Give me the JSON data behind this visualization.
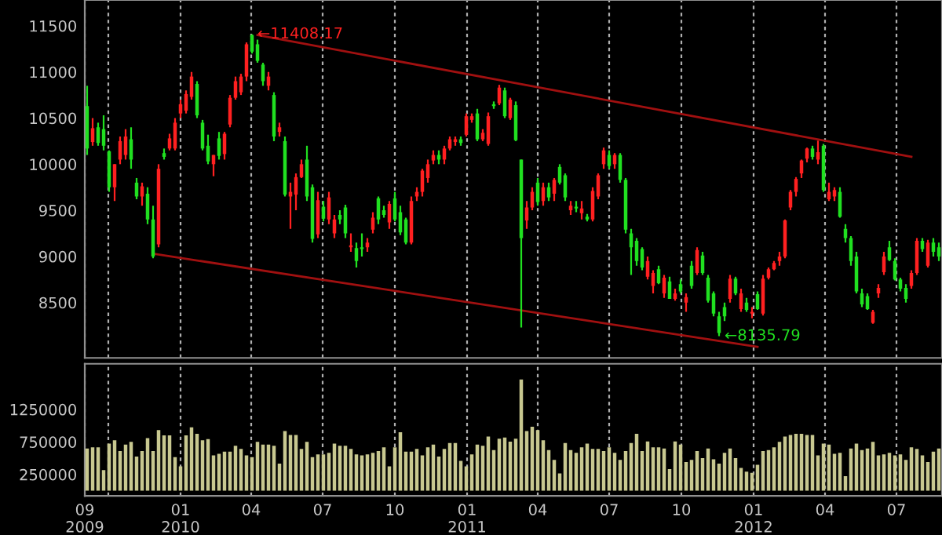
{
  "chart_data": [
    {
      "type": "candlestick",
      "tick_labels": "y",
      "grid": "x",
      "colors": [
        "#20e020",
        "#ff2020",
        "#20e020",
        "#20e020",
        "#20e020",
        "#ff2020",
        "#ff2020",
        "#ff2020",
        "#20e020",
        "#20e020",
        "#ff2020",
        "#20e020",
        "#20e020",
        "#ff2020",
        "#20e020",
        "#ff2020",
        "#ff2020",
        "#ff2020",
        "#ff2020",
        "#ff2020",
        "#20e020",
        "#20e020",
        "#20e020",
        "#ff2020",
        "#20e020",
        "#ff2020",
        "#ff2020",
        "#ff2020",
        "#ff2020",
        "#ff2020",
        "#20e020",
        "#20e020",
        "#20e020",
        "#ff2020",
        "#20e020",
        "#ff2020",
        "#20e020",
        "#ff2020",
        "#ff2020",
        "#ff2020",
        "#20e020",
        "#20e020",
        "#ff2020",
        "#20e020",
        "#ff2020",
        "#ff2020",
        "#20e020",
        "#20e020",
        "#ff2020",
        "#20e020",
        "#20e020",
        "#ff2020",
        "#ff2020",
        "#20e020",
        "#20e020",
        "#ff2020",
        "#20e020",
        "#20e020",
        "#20e020",
        "#ff2020",
        "#ff2020",
        "#ff2020",
        "#ff2020",
        "#ff2020",
        "#20e020",
        "#ff2020",
        "#ff2020",
        "#ff2020",
        "#20e020",
        "#ff2020",
        "#ff2020",
        "#20e020",
        "#ff2020",
        "#ff2020",
        "#20e020",
        "#ff2020",
        "#20e020",
        "#ff2020",
        "#20e020",
        "#20e020",
        "#ff2020",
        "#ff2020",
        "#20e020",
        "#ff2020",
        "#20e020",
        "#ff2020",
        "#20e020",
        "#20e020",
        "#ff2020",
        "#20e020",
        "#ff2020",
        "#20e020",
        "#ff2020",
        "#ff2020",
        "#ff2020",
        "#20e020",
        "#ff2020",
        "#20e020",
        "#20e020",
        "#20e020",
        "#20e020",
        "#20e020",
        "#ff2020",
        "#ff2020",
        "#20e020",
        "#ff2020",
        "#20e020",
        "#ff2020",
        "#20e020",
        "#ff2020",
        "#20e020",
        "#ff2020",
        "#20e020",
        "#20e020",
        "#20e020",
        "#20e020",
        "#20e020",
        "#ff2020",
        "#20e020",
        "#ff2020",
        "#20e020",
        "#ff2020",
        "#20e020",
        "#ff2020",
        "#ff2020",
        "#ff2020",
        "#ff2020",
        "#ff2020",
        "#ff2020",
        "#ff2020",
        "#ff2020",
        "#ff2020",
        "#20e020",
        "#ff2020",
        "#20e020",
        "#ff2020",
        "#ff2020",
        "#20e020",
        "#20e020",
        "#20e020",
        "#20e020",
        "#20e020",
        "#20e020",
        "#ff2020",
        "#ff2020",
        "#ff2020",
        "#20e020",
        "#20e020",
        "#20e020",
        "#20e020",
        "#ff2020",
        "#ff2020",
        "#20e020",
        "#ff2020",
        "#20e020",
        "#20e020"
      ],
      "xlim": [
        "2009-09-01",
        "2012-08-28"
      ],
      "xticks": [
        {
          "value": "2009-09-01",
          "label": null
        },
        {
          "value": "2009-10-01",
          "label": null
        },
        {
          "value": "2010-01-01",
          "label": null
        },
        {
          "value": "2010-04-01",
          "label": null
        },
        {
          "value": "2010-07-01",
          "label": null
        },
        {
          "value": "2010-10-01",
          "label": null
        },
        {
          "value": "2011-01-01",
          "label": null
        },
        {
          "value": "2011-04-01",
          "label": null
        },
        {
          "value": "2011-07-01",
          "label": null
        },
        {
          "value": "2011-10-01",
          "label": null
        },
        {
          "value": "2012-01-01",
          "label": null
        },
        {
          "value": "2012-04-01",
          "label": null
        },
        {
          "value": "2012-07-01",
          "label": null
        }
      ],
      "ylim": [
        7900,
        11780
      ],
      "yticks": [
        8500,
        9000,
        9500,
        10000,
        10500,
        11000,
        11500
      ],
      "annotations": [
        {
          "text": "←11408.17",
          "x": "2010-04-09",
          "y": 11408.17
        },
        {
          "text": "←8135.79",
          "x": "2011-11-25",
          "y": 8135.79
        }
      ],
      "x": [
        "2009-09-04",
        "2009-09-11",
        "2009-09-18",
        "2009-09-25",
        "2009-10-02",
        "2009-10-09",
        "2009-10-16",
        "2009-10-23",
        "2009-10-30",
        "2009-11-06",
        "2009-11-13",
        "2009-11-20",
        "2009-11-27",
        "2009-12-04",
        "2009-12-11",
        "2009-12-18",
        "2009-12-25",
        "2010-01-01",
        "2010-01-08",
        "2010-01-15",
        "2010-01-22",
        "2010-01-29",
        "2010-02-05",
        "2010-02-12",
        "2010-02-19",
        "2010-02-26",
        "2010-03-05",
        "2010-03-12",
        "2010-03-19",
        "2010-03-26",
        "2010-04-02",
        "2010-04-09",
        "2010-04-16",
        "2010-04-23",
        "2010-04-30",
        "2010-05-07",
        "2010-05-14",
        "2010-05-21",
        "2010-05-28",
        "2010-06-04",
        "2010-06-11",
        "2010-06-18",
        "2010-06-25",
        "2010-07-02",
        "2010-07-09",
        "2010-07-16",
        "2010-07-23",
        "2010-07-30",
        "2010-08-06",
        "2010-08-13",
        "2010-08-20",
        "2010-08-27",
        "2010-09-03",
        "2010-09-10",
        "2010-09-17",
        "2010-09-24",
        "2010-10-01",
        "2010-10-08",
        "2010-10-15",
        "2010-10-22",
        "2010-10-29",
        "2010-11-05",
        "2010-11-12",
        "2010-11-19",
        "2010-11-26",
        "2010-12-03",
        "2010-12-10",
        "2010-12-17",
        "2010-12-24",
        "2010-12-31",
        "2011-01-07",
        "2011-01-14",
        "2011-01-21",
        "2011-01-28",
        "2011-02-04",
        "2011-02-11",
        "2011-02-18",
        "2011-02-25",
        "2011-03-04",
        "2011-03-11",
        "2011-03-18",
        "2011-03-25",
        "2011-04-01",
        "2011-04-08",
        "2011-04-15",
        "2011-04-22",
        "2011-04-29",
        "2011-05-06",
        "2011-05-13",
        "2011-05-20",
        "2011-05-27",
        "2011-06-03",
        "2011-06-10",
        "2011-06-17",
        "2011-06-24",
        "2011-07-01",
        "2011-07-08",
        "2011-07-15",
        "2011-07-22",
        "2011-07-29",
        "2011-08-05",
        "2011-08-12",
        "2011-08-19",
        "2011-08-26",
        "2011-09-02",
        "2011-09-09",
        "2011-09-16",
        "2011-09-23",
        "2011-09-30",
        "2011-10-07",
        "2011-10-14",
        "2011-10-21",
        "2011-10-28",
        "2011-11-04",
        "2011-11-11",
        "2011-11-18",
        "2011-11-25",
        "2011-12-02",
        "2011-12-09",
        "2011-12-16",
        "2011-12-23",
        "2011-12-30",
        "2012-01-06",
        "2012-01-13",
        "2012-01-20",
        "2012-01-27",
        "2012-02-03",
        "2012-02-10",
        "2012-02-17",
        "2012-02-24",
        "2012-03-02",
        "2012-03-09",
        "2012-03-16",
        "2012-03-23",
        "2012-03-30",
        "2012-04-06",
        "2012-04-13",
        "2012-04-20",
        "2012-04-27",
        "2012-05-04",
        "2012-05-11",
        "2012-05-18",
        "2012-05-25",
        "2012-06-01",
        "2012-06-08",
        "2012-06-15",
        "2012-06-22",
        "2012-06-29",
        "2012-07-06",
        "2012-07-13",
        "2012-07-20",
        "2012-07-27",
        "2012-08-03",
        "2012-08-10",
        "2012-08-17",
        "2012-08-24"
      ],
      "ohlc": [
        [
          10630,
          10850,
          10100,
          10170
        ],
        [
          10240,
          10500,
          10200,
          10390
        ],
        [
          10400,
          10450,
          10200,
          10230
        ],
        [
          10380,
          10530,
          10150,
          10200
        ],
        [
          10140,
          10150,
          9700,
          9750
        ],
        [
          9750,
          10000,
          9600,
          10000
        ],
        [
          10050,
          10300,
          10000,
          10250
        ],
        [
          10100,
          10380,
          10050,
          10300
        ],
        [
          10270,
          10400,
          9950,
          10050
        ],
        [
          9800,
          9850,
          9620,
          9650
        ],
        [
          9650,
          9800,
          9550,
          9760
        ],
        [
          9680,
          9750,
          9350,
          9400
        ],
        [
          9400,
          9550,
          8980,
          9000
        ],
        [
          9130,
          10000,
          9100,
          9950
        ],
        [
          10120,
          10170,
          10050,
          10080
        ],
        [
          10170,
          10330,
          10150,
          10280
        ],
        [
          10170,
          10500,
          10150,
          10450
        ],
        [
          10550,
          10700,
          10500,
          10650
        ],
        [
          10580,
          10800,
          10550,
          10760
        ],
        [
          10730,
          11000,
          10700,
          10950
        ],
        [
          10870,
          10900,
          10500,
          10530
        ],
        [
          10450,
          10480,
          10150,
          10170
        ],
        [
          10200,
          10320,
          10000,
          10030
        ],
        [
          10000,
          10100,
          9870,
          10100
        ],
        [
          10280,
          10350,
          10050,
          10090
        ],
        [
          10110,
          10350,
          10050,
          10330
        ],
        [
          10430,
          10750,
          10400,
          10720
        ],
        [
          10720,
          10950,
          10700,
          10900
        ],
        [
          10780,
          10980,
          10750,
          10950
        ],
        [
          10950,
          11320,
          10900,
          11300
        ],
        [
          11400,
          11408,
          11200,
          11220
        ],
        [
          11300,
          11350,
          11100,
          11120
        ],
        [
          11080,
          11100,
          10850,
          10900
        ],
        [
          10850,
          11000,
          10800,
          10950
        ],
        [
          10750,
          10780,
          10250,
          10300
        ],
        [
          10350,
          10450,
          10300,
          10400
        ],
        [
          10250,
          10300,
          9650,
          9670
        ],
        [
          9650,
          9800,
          9300,
          9700
        ],
        [
          9670,
          9900,
          9500,
          9860
        ],
        [
          9860,
          10050,
          9850,
          10000
        ],
        [
          10050,
          10200,
          9600,
          9650
        ],
        [
          9750,
          9780,
          9150,
          9190
        ],
        [
          9240,
          9700,
          9200,
          9610
        ],
        [
          9540,
          9600,
          9380,
          9410
        ],
        [
          9400,
          9700,
          9350,
          9640
        ],
        [
          9250,
          9450,
          9200,
          9400
        ],
        [
          9450,
          9500,
          9350,
          9400
        ],
        [
          9530,
          9560,
          9200,
          9250
        ],
        [
          9100,
          9250,
          9050,
          9120
        ],
        [
          9090,
          9150,
          8880,
          8950
        ],
        [
          9100,
          9250,
          9000,
          9080
        ],
        [
          9100,
          9200,
          9050,
          9150
        ],
        [
          9290,
          9480,
          9250,
          9420
        ],
        [
          9630,
          9650,
          9350,
          9400
        ],
        [
          9500,
          9550,
          9420,
          9450
        ],
        [
          9370,
          9600,
          9300,
          9570
        ],
        [
          9630,
          9700,
          9380,
          9400
        ],
        [
          9480,
          9550,
          9230,
          9260
        ],
        [
          9400,
          9420,
          9130,
          9150
        ],
        [
          9150,
          9650,
          9130,
          9600
        ],
        [
          9650,
          9750,
          9600,
          9700
        ],
        [
          9700,
          9950,
          9650,
          9930
        ],
        [
          9850,
          10050,
          9800,
          10000
        ],
        [
          10040,
          10150,
          10000,
          10100
        ],
        [
          10100,
          10150,
          10000,
          10050
        ],
        [
          10050,
          10200,
          10000,
          10170
        ],
        [
          10170,
          10300,
          10150,
          10270
        ],
        [
          10240,
          10300,
          10200,
          10270
        ],
        [
          10270,
          10300,
          10200,
          10230
        ],
        [
          10320,
          10550,
          10300,
          10520
        ],
        [
          10480,
          10550,
          10450,
          10520
        ],
        [
          10550,
          10600,
          10250,
          10270
        ],
        [
          10270,
          10380,
          10250,
          10340
        ],
        [
          10220,
          10560,
          10200,
          10520
        ],
        [
          10650,
          10680,
          10600,
          10630
        ],
        [
          10660,
          10860,
          10640,
          10830
        ],
        [
          10800,
          10830,
          10500,
          10520
        ],
        [
          10500,
          10720,
          10480,
          10700
        ],
        [
          10640,
          10680,
          10250,
          10260
        ],
        [
          10050,
          10050,
          8230,
          9200
        ],
        [
          9390,
          9600,
          9300,
          9530
        ],
        [
          9530,
          9750,
          9500,
          9700
        ],
        [
          9800,
          9850,
          9550,
          9590
        ],
        [
          9600,
          9800,
          9550,
          9750
        ],
        [
          9750,
          9800,
          9600,
          9640
        ],
        [
          9680,
          9850,
          9600,
          9830
        ],
        [
          9970,
          10000,
          9780,
          9800
        ],
        [
          9880,
          9900,
          9600,
          9640
        ],
        [
          9500,
          9600,
          9450,
          9550
        ],
        [
          9540,
          9600,
          9480,
          9520
        ],
        [
          9470,
          9600,
          9400,
          9520
        ],
        [
          9430,
          9460,
          9380,
          9400
        ],
        [
          9400,
          9750,
          9380,
          9710
        ],
        [
          9650,
          9900,
          9620,
          9880
        ],
        [
          10000,
          10180,
          9950,
          10150
        ],
        [
          10100,
          10150,
          9950,
          9980
        ],
        [
          10000,
          10120,
          9950,
          10100
        ],
        [
          10100,
          10120,
          9800,
          9830
        ],
        [
          9830,
          9850,
          9250,
          9290
        ],
        [
          9250,
          9300,
          8800,
          9100
        ],
        [
          9170,
          9200,
          8900,
          8950
        ],
        [
          9080,
          9100,
          8850,
          8880
        ],
        [
          8780,
          9000,
          8750,
          8950
        ],
        [
          8680,
          8850,
          8600,
          8820
        ],
        [
          8860,
          8900,
          8700,
          8710
        ],
        [
          8600,
          8800,
          8550,
          8770
        ],
        [
          8730,
          8780,
          8540,
          8540
        ],
        [
          8540,
          8650,
          8520,
          8600
        ],
        [
          8700,
          8750,
          8600,
          8620
        ],
        [
          8500,
          8600,
          8400,
          8560
        ],
        [
          8900,
          8950,
          8650,
          8680
        ],
        [
          8820,
          9100,
          8800,
          9070
        ],
        [
          9010,
          9050,
          8800,
          8820
        ],
        [
          8770,
          8800,
          8500,
          8520
        ],
        [
          8600,
          8620,
          8350,
          8380
        ],
        [
          8350,
          8400,
          8136,
          8170
        ],
        [
          8450,
          8500,
          8300,
          8350
        ],
        [
          8540,
          8800,
          8500,
          8760
        ],
        [
          8760,
          8780,
          8580,
          8600
        ],
        [
          8430,
          8650,
          8400,
          8600
        ],
        [
          8500,
          8550,
          8400,
          8420
        ],
        [
          8380,
          8450,
          8330,
          8400
        ],
        [
          8590,
          8620,
          8420,
          8430
        ],
        [
          8380,
          8800,
          8360,
          8760
        ],
        [
          8770,
          8880,
          8750,
          8860
        ],
        [
          8860,
          8950,
          8850,
          8930
        ],
        [
          8950,
          9050,
          8900,
          9000
        ],
        [
          9000,
          9400,
          8980,
          9390
        ],
        [
          9530,
          9720,
          9500,
          9700
        ],
        [
          9700,
          9860,
          9650,
          9840
        ],
        [
          9900,
          10050,
          9850,
          10040
        ],
        [
          10060,
          10180,
          10020,
          10170
        ],
        [
          10170,
          10200,
          10050,
          10080
        ],
        [
          10050,
          10255,
          10000,
          10130
        ],
        [
          10200,
          10220,
          9700,
          9720
        ],
        [
          9620,
          9800,
          9600,
          9700
        ],
        [
          9650,
          9750,
          9600,
          9720
        ],
        [
          9700,
          9750,
          9420,
          9430
        ],
        [
          9300,
          9350,
          9150,
          9200
        ],
        [
          9200,
          9220,
          8900,
          8950
        ],
        [
          9000,
          9050,
          8600,
          8620
        ],
        [
          8600,
          8650,
          8450,
          8480
        ],
        [
          8570,
          8600,
          8420,
          8430
        ],
        [
          8280,
          8420,
          8270,
          8400
        ],
        [
          8600,
          8700,
          8550,
          8660
        ],
        [
          8830,
          9050,
          8800,
          9000
        ],
        [
          9100,
          9170,
          8950,
          8960
        ],
        [
          8950,
          8980,
          8740,
          8750
        ],
        [
          8750,
          8770,
          8620,
          8650
        ],
        [
          8660,
          8700,
          8500,
          8540
        ],
        [
          8680,
          8850,
          8650,
          8820
        ],
        [
          8820,
          9200,
          8800,
          9170
        ],
        [
          9170,
          9200,
          9050,
          9080
        ],
        [
          8900,
          9180,
          8880,
          9150
        ],
        [
          9150,
          9200,
          9000,
          9050
        ],
        [
          9100,
          9150,
          8950,
          9000
        ]
      ],
      "series": [
        {
          "type": "line",
          "x": [
            "2010-04-09",
            "2012-07-20"
          ],
          "values": [
            11400,
            10080
          ],
          "color": "#a01010"
        },
        {
          "type": "line",
          "x": [
            "2009-11-27",
            "2012-01-06"
          ],
          "values": [
            9030,
            8020
          ],
          "color": "#a01010"
        }
      ]
    },
    {
      "type": "bar",
      "color": "#c8c890",
      "grid": "x",
      "xlim": [
        "2009-09-01",
        "2012-08-28"
      ],
      "xticks": [
        {
          "value": "2009-09-01",
          "label": "09\n2009"
        },
        {
          "value": "2009-10-01",
          "label": null
        },
        {
          "value": "2010-01-01",
          "label": "01\n2010"
        },
        {
          "value": "2010-04-01",
          "label": "04"
        },
        {
          "value": "2010-07-01",
          "label": "07"
        },
        {
          "value": "2010-10-01",
          "label": "10"
        },
        {
          "value": "2011-01-01",
          "label": "01\n2011"
        },
        {
          "value": "2011-04-01",
          "label": "04"
        },
        {
          "value": "2011-07-01",
          "label": "07"
        },
        {
          "value": "2011-10-01",
          "label": "10"
        },
        {
          "value": "2012-01-01",
          "label": "01\n2012"
        },
        {
          "value": "2012-04-01",
          "label": "04"
        },
        {
          "value": "2012-07-01",
          "label": "07"
        }
      ],
      "ylim": [
        -80000,
        1950000
      ],
      "yticks": [
        250000,
        750000,
        1250000
      ],
      "values": [
        650000,
        667000,
        667000,
        317000,
        725000,
        775000,
        608000,
        708000,
        750000,
        525000,
        608000,
        808000,
        608000,
        933000,
        850000,
        850000,
        517000,
        375000,
        850000,
        975000,
        875000,
        775000,
        792000,
        542000,
        567000,
        600000,
        600000,
        692000,
        642000,
        542000,
        517000,
        750000,
        708000,
        708000,
        692000,
        417000,
        917000,
        858000,
        858000,
        642000,
        750000,
        517000,
        558000,
        558000,
        583000,
        725000,
        692000,
        692000,
        642000,
        558000,
        542000,
        558000,
        583000,
        608000,
        667000,
        375000,
        667000,
        900000,
        600000,
        600000,
        642000,
        542000,
        667000,
        708000,
        525000,
        642000,
        733000,
        733000,
        458000,
        375000,
        558000,
        708000,
        692000,
        833000,
        625000,
        800000,
        817000,
        755000,
        800000,
        1710000,
        917000,
        983000,
        933000,
        775000,
        625000,
        475000,
        267000,
        733000,
        625000,
        583000,
        667000,
        725000,
        642000,
        642000,
        608000,
        667000,
        583000,
        475000,
        608000,
        733000,
        875000,
        608000,
        758000,
        667000,
        667000,
        650000,
        333000,
        758000,
        708000,
        442000,
        475000,
        608000,
        500000,
        650000,
        483000,
        417000,
        583000,
        650000,
        500000,
        350000,
        292000,
        275000,
        400000,
        608000,
        625000,
        667000,
        750000,
        833000,
        858000,
        875000,
        875000,
        858000,
        858000,
        542000,
        725000,
        708000,
        567000,
        583000,
        225000,
        650000,
        725000,
        625000,
        650000,
        750000,
        542000,
        558000,
        583000,
        542000,
        558000,
        475000,
        667000,
        642000,
        542000,
        442000,
        600000,
        650000
      ],
      "x": [
        "2009-09-04",
        "2009-09-11",
        "2009-09-18",
        "2009-09-25",
        "2009-10-02",
        "2009-10-09",
        "2009-10-16",
        "2009-10-23",
        "2009-10-30",
        "2009-11-06",
        "2009-11-13",
        "2009-11-20",
        "2009-11-27",
        "2009-12-04",
        "2009-12-11",
        "2009-12-18",
        "2009-12-25",
        "2010-01-01",
        "2010-01-08",
        "2010-01-15",
        "2010-01-22",
        "2010-01-29",
        "2010-02-05",
        "2010-02-12",
        "2010-02-19",
        "2010-02-26",
        "2010-03-05",
        "2010-03-12",
        "2010-03-19",
        "2010-03-26",
        "2010-04-02",
        "2010-04-09",
        "2010-04-16",
        "2010-04-23",
        "2010-04-30",
        "2010-05-07",
        "2010-05-14",
        "2010-05-21",
        "2010-05-28",
        "2010-06-04",
        "2010-06-11",
        "2010-06-18",
        "2010-06-25",
        "2010-07-02",
        "2010-07-09",
        "2010-07-16",
        "2010-07-23",
        "2010-07-30",
        "2010-08-06",
        "2010-08-13",
        "2010-08-20",
        "2010-08-27",
        "2010-09-03",
        "2010-09-10",
        "2010-09-17",
        "2010-09-24",
        "2010-10-01",
        "2010-10-08",
        "2010-10-15",
        "2010-10-22",
        "2010-10-29",
        "2010-11-05",
        "2010-11-12",
        "2010-11-19",
        "2010-11-26",
        "2010-12-03",
        "2010-12-10",
        "2010-12-17",
        "2010-12-24",
        "2010-12-31",
        "2011-01-07",
        "2011-01-14",
        "2011-01-21",
        "2011-01-28",
        "2011-02-04",
        "2011-02-11",
        "2011-02-18",
        "2011-02-25",
        "2011-03-04",
        "2011-03-11",
        "2011-03-18",
        "2011-03-25",
        "2011-04-01",
        "2011-04-08",
        "2011-04-15",
        "2011-04-22",
        "2011-04-29",
        "2011-05-06",
        "2011-05-13",
        "2011-05-20",
        "2011-05-27",
        "2011-06-03",
        "2011-06-10",
        "2011-06-17",
        "2011-06-24",
        "2011-07-01",
        "2011-07-08",
        "2011-07-15",
        "2011-07-22",
        "2011-07-29",
        "2011-08-05",
        "2011-08-12",
        "2011-08-19",
        "2011-08-26",
        "2011-09-02",
        "2011-09-09",
        "2011-09-16",
        "2011-09-23",
        "2011-09-30",
        "2011-10-07",
        "2011-10-14",
        "2011-10-21",
        "2011-10-28",
        "2011-11-04",
        "2011-11-11",
        "2011-11-18",
        "2011-11-25",
        "2011-12-02",
        "2011-12-09",
        "2011-12-16",
        "2011-12-23",
        "2011-12-30",
        "2012-01-06",
        "2012-01-13",
        "2012-01-20",
        "2012-01-27",
        "2012-02-03",
        "2012-02-10",
        "2012-02-17",
        "2012-02-24",
        "2012-03-02",
        "2012-03-09",
        "2012-03-16",
        "2012-03-23",
        "2012-03-30",
        "2012-04-06",
        "2012-04-13",
        "2012-04-20",
        "2012-04-27",
        "2012-05-04",
        "2012-05-11",
        "2012-05-18",
        "2012-05-25",
        "2012-06-01",
        "2012-06-08",
        "2012-06-15",
        "2012-06-22",
        "2012-06-29",
        "2012-07-06",
        "2012-07-13",
        "2012-07-20",
        "2012-07-27",
        "2012-08-03",
        "2012-08-10",
        "2012-08-17",
        "2012-08-24"
      ]
    }
  ]
}
